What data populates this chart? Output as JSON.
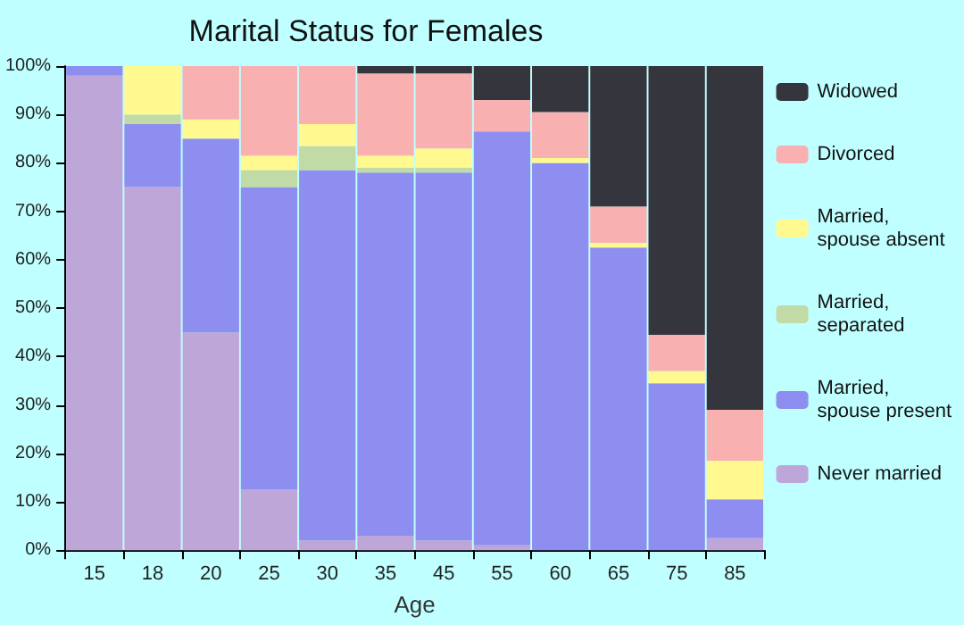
{
  "chart_data": {
    "type": "bar",
    "title": "Marital Status for Females",
    "xlabel": "Age",
    "stacked": true,
    "legend": "right",
    "grid": false,
    "categories": [
      "15",
      "18",
      "20",
      "25",
      "30",
      "35",
      "45",
      "55",
      "60",
      "65",
      "75",
      "85"
    ],
    "ylim": [
      0,
      100
    ],
    "yticks": [
      {
        "value": 0,
        "label": "0%"
      },
      {
        "value": 10,
        "label": "10%"
      },
      {
        "value": 20,
        "label": "20%"
      },
      {
        "value": 30,
        "label": "30%"
      },
      {
        "value": 40,
        "label": "40%"
      },
      {
        "value": 50,
        "label": "50%"
      },
      {
        "value": 60,
        "label": "60%"
      },
      {
        "value": 70,
        "label": "70%"
      },
      {
        "value": 80,
        "label": "80%"
      },
      {
        "value": 90,
        "label": "90%"
      },
      {
        "value": 100,
        "label": "100%"
      }
    ],
    "series": [
      {
        "name": "Never married",
        "color": "#bfa6d8",
        "values": [
          98,
          75,
          45,
          12.5,
          2,
          3,
          2,
          1,
          0,
          0,
          0,
          2.5
        ]
      },
      {
        "name": "Married, spouse present",
        "color": "#8e8ef0",
        "values": [
          2,
          13,
          40,
          62.5,
          76.5,
          75,
          76,
          85.5,
          80,
          62.5,
          34.5,
          8
        ]
      },
      {
        "name": "Married, separated",
        "color": "#c2daa5",
        "values": [
          0,
          2,
          0,
          3.5,
          5,
          1,
          1,
          0,
          0,
          0,
          0,
          0
        ]
      },
      {
        "name": "Married, spouse absent",
        "color": "#fff98f",
        "values": [
          0,
          10,
          4,
          3,
          4.5,
          2.5,
          4,
          0,
          1,
          1,
          2.5,
          8
        ]
      },
      {
        "name": "Divorced",
        "color": "#f8b0b0",
        "values": [
          0,
          0,
          11,
          18.5,
          12,
          17,
          15.5,
          6.5,
          9.5,
          7.5,
          7.5,
          10.5
        ]
      },
      {
        "name": "Widowed",
        "color": "#35363d",
        "values": [
          0,
          0,
          0,
          0,
          0,
          1.5,
          1.5,
          7,
          9.5,
          29,
          55.5,
          71
        ]
      }
    ]
  }
}
